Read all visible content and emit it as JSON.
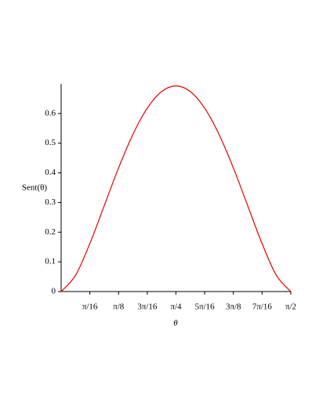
{
  "chart_data": {
    "type": "line",
    "xlabel": "θ",
    "ylabel": "Sent(θ)",
    "x": [
      0,
      0.0982,
      0.1963,
      0.2945,
      0.3927,
      0.4909,
      0.589,
      0.6872,
      0.7854,
      0.8836,
      0.9817,
      1.0799,
      1.1781,
      1.2763,
      1.3744,
      1.4726,
      1.5708
    ],
    "series": [
      {
        "color": "#e00000",
        "values": [
          0,
          0.0542,
          0.1617,
          0.2891,
          0.4165,
          0.5297,
          0.618,
          0.674,
          0.6931,
          0.674,
          0.618,
          0.5297,
          0.4165,
          0.2891,
          0.1617,
          0.0542,
          0
        ]
      }
    ],
    "xlim": [
      0,
      1.5708
    ],
    "ylim": [
      0,
      0.7
    ],
    "xticks": [
      {
        "value": 0.19635,
        "label": "π/16"
      },
      {
        "value": 0.3927,
        "label": "π/8"
      },
      {
        "value": 0.58905,
        "label": "3π/16"
      },
      {
        "value": 0.7854,
        "label": "π/4"
      },
      {
        "value": 0.98175,
        "label": "5π/16"
      },
      {
        "value": 1.1781,
        "label": "3π/8"
      },
      {
        "value": 1.37445,
        "label": "7π/16"
      },
      {
        "value": 1.5708,
        "label": "π/2"
      }
    ],
    "yticks": [
      0,
      0.1,
      0.2,
      0.3,
      0.4,
      0.5,
      0.6
    ]
  }
}
